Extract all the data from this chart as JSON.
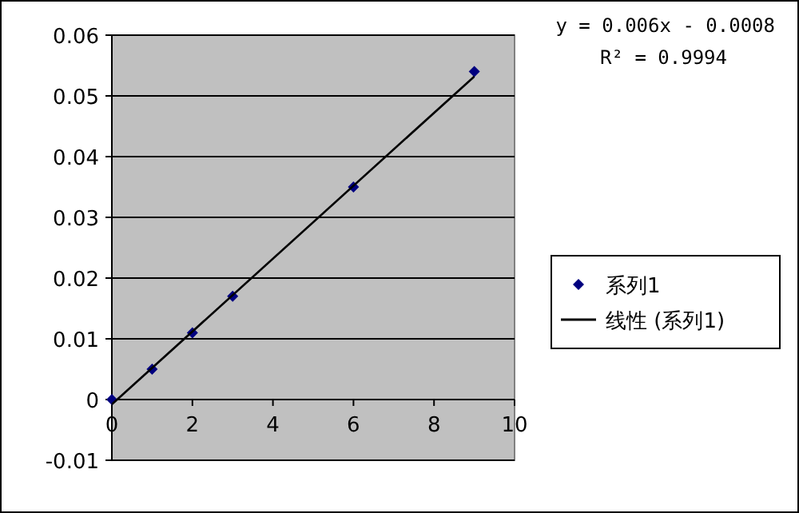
{
  "chart_data": {
    "type": "scatter",
    "xlim": [
      0,
      10
    ],
    "xticks": [
      0,
      2,
      4,
      6,
      8,
      10
    ],
    "ylim": [
      -0.01,
      0.06
    ],
    "yticks": [
      -0.01,
      0,
      0.01,
      0.02,
      0.03,
      0.04,
      0.05,
      0.06
    ],
    "grid": "y",
    "legend": "right",
    "series": [
      {
        "name": "系列1",
        "type": "scatter",
        "marker": "diamond",
        "color": "#000080",
        "x": [
          0,
          1,
          2,
          3,
          6,
          9
        ],
        "values": [
          0,
          0.005,
          0.011,
          0.017,
          0.035,
          0.054
        ]
      },
      {
        "name": "线性 (系列1)",
        "type": "line",
        "marker": "none",
        "color": "#000000",
        "line_style": "solid",
        "x": [
          0,
          9
        ],
        "values": [
          -0.0008,
          0.0532
        ]
      }
    ],
    "annotations": [
      "y = 0.006x - 0.0008",
      "R² = 0.9994"
    ]
  }
}
